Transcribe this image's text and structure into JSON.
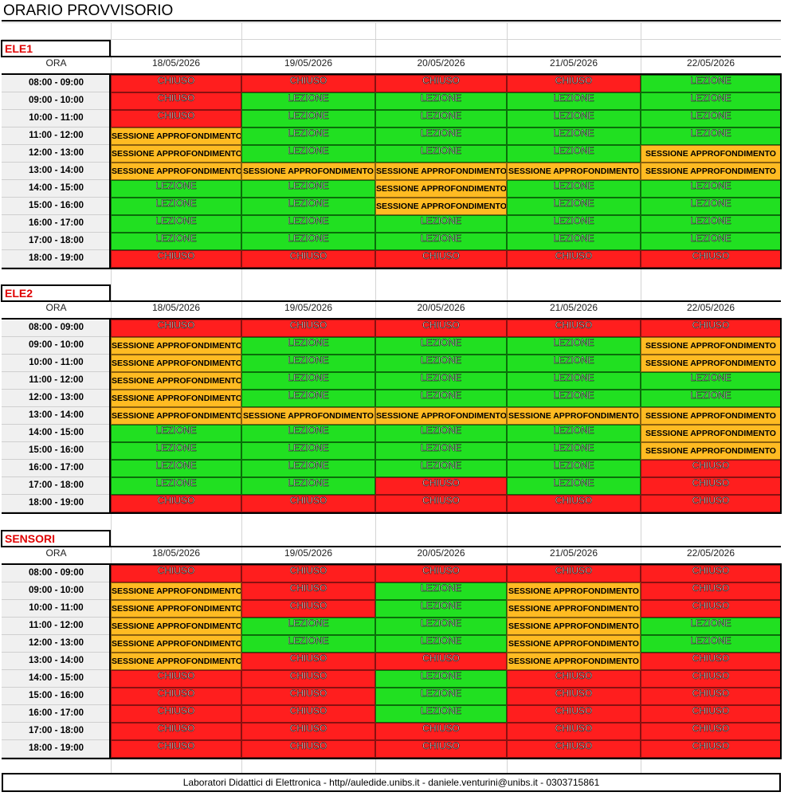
{
  "title": "ORARIO PROVVISORIO",
  "ora_label": "ORA",
  "dates": [
    "18/05/2026",
    "19/05/2026",
    "20/05/2026",
    "21/05/2026",
    "22/05/2026"
  ],
  "hours": [
    "08:00 - 09:00",
    "09:00 - 10:00",
    "10:00 - 11:00",
    "11:00 - 12:00",
    "12:00 - 13:00",
    "13:00 - 14:00",
    "14:00 - 15:00",
    "15:00 - 16:00",
    "16:00 - 17:00",
    "17:00 - 18:00",
    "18:00 - 19:00"
  ],
  "legend": {
    "C": "CHIUSO",
    "L": "LEZIONE",
    "S": "SESSIONE APPROFONDIMENTO"
  },
  "colors": {
    "C": "#ff1e1e",
    "L": "#21e021",
    "S": "#ffbb22"
  },
  "sections": [
    {
      "name": "ELE1",
      "grid": [
        [
          "C",
          "C",
          "C",
          "C",
          "L"
        ],
        [
          "C",
          "L",
          "L",
          "L",
          "L"
        ],
        [
          "C",
          "L",
          "L",
          "L",
          "L"
        ],
        [
          "S",
          "L",
          "L",
          "L",
          "L"
        ],
        [
          "S",
          "L",
          "L",
          "L",
          "S"
        ],
        [
          "S",
          "S",
          "S",
          "S",
          "S"
        ],
        [
          "L",
          "L",
          "S",
          "L",
          "L"
        ],
        [
          "L",
          "L",
          "S",
          "L",
          "L"
        ],
        [
          "L",
          "L",
          "L",
          "L",
          "L"
        ],
        [
          "L",
          "L",
          "L",
          "L",
          "L"
        ],
        [
          "C",
          "C",
          "C",
          "C",
          "C"
        ]
      ]
    },
    {
      "name": "ELE2",
      "grid": [
        [
          "C",
          "C",
          "C",
          "C",
          "C"
        ],
        [
          "S",
          "L",
          "L",
          "L",
          "S"
        ],
        [
          "S",
          "L",
          "L",
          "L",
          "S"
        ],
        [
          "S",
          "L",
          "L",
          "L",
          "L"
        ],
        [
          "S",
          "L",
          "L",
          "L",
          "L"
        ],
        [
          "S",
          "S",
          "S",
          "S",
          "S"
        ],
        [
          "L",
          "L",
          "L",
          "L",
          "S"
        ],
        [
          "L",
          "L",
          "L",
          "L",
          "S"
        ],
        [
          "L",
          "L",
          "L",
          "L",
          "C"
        ],
        [
          "L",
          "L",
          "C",
          "L",
          "C"
        ],
        [
          "C",
          "C",
          "C",
          "C",
          "C"
        ]
      ]
    },
    {
      "name": "SENSORI",
      "grid": [
        [
          "C",
          "C",
          "C",
          "C",
          "C"
        ],
        [
          "S",
          "C",
          "L",
          "S",
          "C"
        ],
        [
          "S",
          "C",
          "L",
          "S",
          "C"
        ],
        [
          "S",
          "L",
          "L",
          "S",
          "L"
        ],
        [
          "S",
          "L",
          "L",
          "S",
          "L"
        ],
        [
          "S",
          "C",
          "C",
          "S",
          "C"
        ],
        [
          "C",
          "C",
          "L",
          "C",
          "C"
        ],
        [
          "C",
          "C",
          "L",
          "C",
          "C"
        ],
        [
          "C",
          "C",
          "L",
          "C",
          "C"
        ],
        [
          "C",
          "C",
          "C",
          "C",
          "C"
        ],
        [
          "C",
          "C",
          "C",
          "C",
          "C"
        ]
      ]
    }
  ],
  "footer": "Laboratori Didattici di Elettronica - http//auledide.unibs.it - daniele.venturini@unibs.it - 0303715861"
}
